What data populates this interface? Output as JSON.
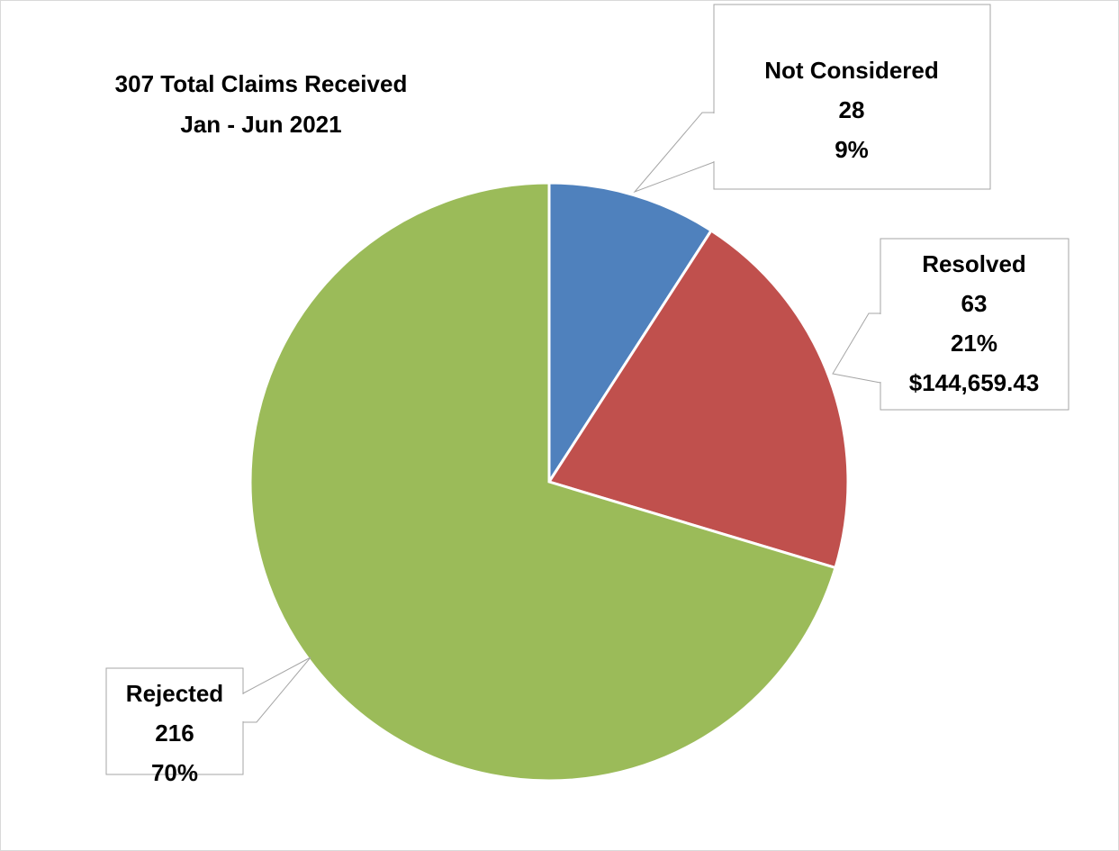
{
  "chart_data": {
    "type": "pie",
    "title": [
      "307 Total Claims Received",
      "Jan - Jun 2021"
    ],
    "categories": [
      "Not Considered",
      "Resolved",
      "Rejected"
    ],
    "values": [
      28,
      63,
      216
    ],
    "percent_labels": [
      "9%",
      "21%",
      "70%"
    ],
    "resolved_amount": "$144,659.43",
    "colors": [
      "#4f81bd",
      "#c0504d",
      "#9bbb59"
    ]
  }
}
